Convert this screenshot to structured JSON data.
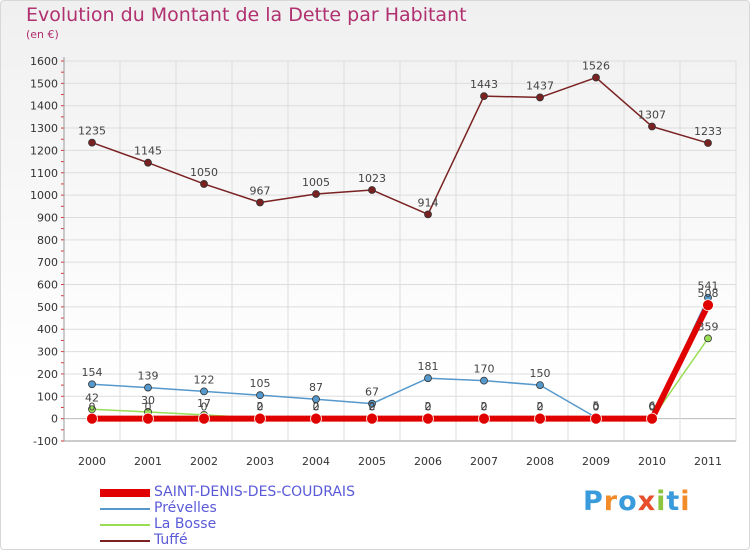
{
  "title": "Evolution du Montant de la Dette par Habitant",
  "unit_label": "(en €)",
  "logo": {
    "text": "Proxiti",
    "colors": [
      "#3a9bdc",
      "#f28c28",
      "#3a9bdc",
      "#e84e2c",
      "#8cc63f",
      "#3a9bdc",
      "#f28c28"
    ]
  },
  "chart_data": {
    "type": "line",
    "title": "Evolution du Montant de la Dette par Habitant",
    "ylabel": "(en €)",
    "xlabel": "",
    "ylim": [
      -100,
      1600
    ],
    "yticks": [
      "-100",
      "0",
      "100",
      "200",
      "300",
      "400",
      "500",
      "600",
      "700",
      "800",
      "900",
      "1000",
      "1100",
      "1200",
      "1300",
      "1400",
      "1500",
      "1600"
    ],
    "x": [
      "2000",
      "2001",
      "2002",
      "2003",
      "2004",
      "2005",
      "2006",
      "2007",
      "2008",
      "2009",
      "2010",
      "2011"
    ],
    "grid": true,
    "legend_position": "bottom-left",
    "series": [
      {
        "name": "SAINT-DENIS-DES-COUDRAIS",
        "color": "#e00000",
        "values": [
          0,
          0,
          0,
          0,
          0,
          0,
          0,
          0,
          0,
          0,
          0,
          508
        ],
        "labels": [
          "0",
          "0",
          "0",
          "0",
          "0",
          "0",
          "0",
          "0",
          "0",
          "0",
          "0",
          "508"
        ]
      },
      {
        "name": "Prévelles",
        "color": "#5599cc",
        "values": [
          154,
          139,
          122,
          105,
          87,
          67,
          181,
          170,
          150,
          5,
          6,
          541
        ],
        "labels": [
          "154",
          "139",
          "122",
          "105",
          "87",
          "67",
          "181",
          "170",
          "150",
          "5",
          "6",
          "541"
        ]
      },
      {
        "name": "La Bosse",
        "color": "#99dd55",
        "values": [
          42,
          30,
          17,
          2,
          2,
          2,
          2,
          2,
          2,
          0,
          0,
          359
        ],
        "labels": [
          "42",
          "30",
          "17",
          "2",
          "2",
          "2",
          "2",
          "2",
          "2",
          "0",
          "0",
          "359"
        ]
      },
      {
        "name": "Tuffé",
        "color": "#7a2222",
        "values": [
          1235,
          1145,
          1050,
          967,
          1005,
          1023,
          914,
          1443,
          1437,
          1526,
          1307,
          1233
        ],
        "labels": [
          "1235",
          "1145",
          "1050",
          "967",
          "1005",
          "1023",
          "914",
          "1443",
          "1437",
          "1526",
          "1307",
          "1233"
        ]
      }
    ]
  }
}
